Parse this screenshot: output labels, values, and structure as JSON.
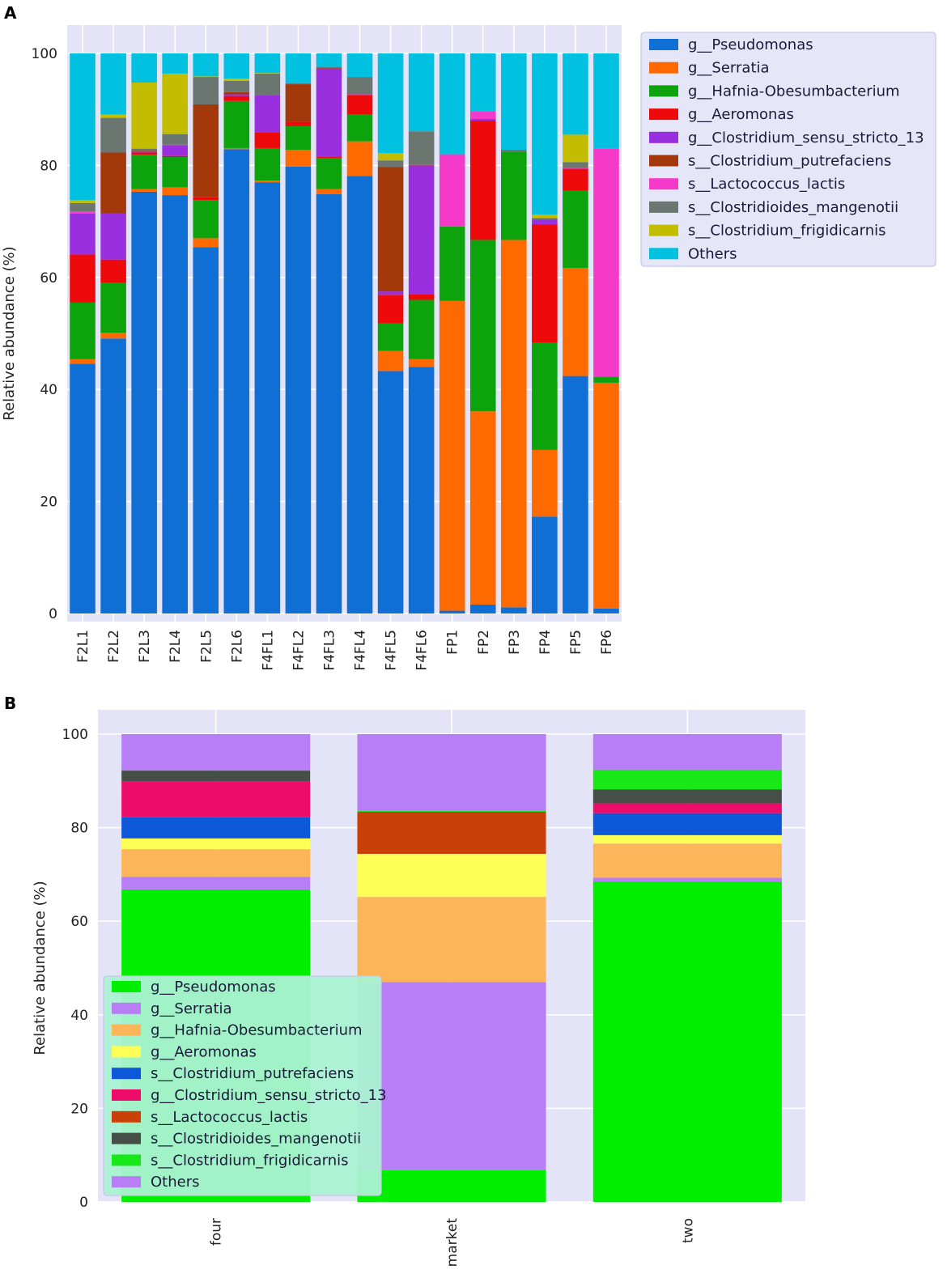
{
  "panels": {
    "a": "A",
    "b": "B"
  },
  "chart_data": [
    {
      "type": "bar",
      "stacked": true,
      "ylabel": "Relative abundance (%)",
      "ylim": [
        0,
        100
      ],
      "yticks": [
        0,
        20,
        40,
        60,
        80,
        100
      ],
      "grid": true,
      "legend_position": "right",
      "categories": [
        "F2L1",
        "F2L2",
        "F2L3",
        "F2L4",
        "F2L5",
        "F2L6",
        "F4FL1",
        "F4FL2",
        "F4FL3",
        "F4FL4",
        "F4FL5",
        "F4FL6",
        "FP1",
        "FP2",
        "FP3",
        "FP4",
        "FP5",
        "FP6"
      ],
      "series": [
        {
          "name": "g__Pseudomonas",
          "color": "#0f6fd5",
          "values": [
            44.6,
            49.1,
            75.3,
            74.7,
            65.4,
            82.9,
            77.0,
            79.8,
            74.9,
            78.1,
            43.3,
            44.0,
            0.5,
            1.6,
            1.1,
            17.3,
            42.4,
            0.9
          ]
        },
        {
          "name": "g__Serratia",
          "color": "#ff6a00",
          "values": [
            0.8,
            1.0,
            0.5,
            1.4,
            1.6,
            0.2,
            0.3,
            3.0,
            0.9,
            6.2,
            3.6,
            1.4,
            55.3,
            34.5,
            65.6,
            11.9,
            19.3,
            40.3
          ]
        },
        {
          "name": "g__Hafnia-Obesumbacterium",
          "color": "#0da30d",
          "values": [
            10.1,
            8.9,
            6.1,
            5.4,
            6.8,
            8.4,
            5.8,
            4.2,
            5.5,
            4.8,
            4.9,
            10.6,
            13.3,
            30.6,
            15.7,
            19.1,
            13.8,
            1.1
          ]
        },
        {
          "name": "g__Aeromonas",
          "color": "#ee0a0a",
          "values": [
            8.6,
            4.2,
            0.4,
            0.2,
            0.5,
            0.9,
            2.8,
            0.8,
            0.3,
            3.5,
            5.1,
            1.0,
            0.0,
            21.3,
            0.1,
            21.2,
            3.9,
            0.0
          ]
        },
        {
          "name": "g__Clostridium_sensu_stricto_13",
          "color": "#9a2fe0",
          "values": [
            7.3,
            8.2,
            0.2,
            1.9,
            0.0,
            0.3,
            6.7,
            0.0,
            15.7,
            0.0,
            0.6,
            23.0,
            0.0,
            0.3,
            0.0,
            0.8,
            0.0,
            0.0
          ]
        },
        {
          "name": "s__Clostridium_putrefaciens",
          "color": "#a3380a",
          "values": [
            0.0,
            10.9,
            0.1,
            0.0,
            16.6,
            0.4,
            0.0,
            6.7,
            0.1,
            0.0,
            22.2,
            0.1,
            0.0,
            0.0,
            0.0,
            0.0,
            0.0,
            0.0
          ]
        },
        {
          "name": "s__Lactococcus_lactis",
          "color": "#f539c9",
          "values": [
            0.4,
            0.0,
            0.0,
            0.1,
            0.0,
            0.0,
            0.0,
            0.0,
            0.0,
            0.1,
            0.0,
            0.0,
            12.9,
            1.3,
            0.0,
            0.0,
            0.1,
            40.7
          ]
        },
        {
          "name": "s__Clostridioides_mangenotii",
          "color": "#6b7670",
          "values": [
            1.5,
            6.2,
            0.4,
            1.9,
            4.9,
            2.0,
            3.8,
            0.2,
            0.2,
            3.1,
            1.2,
            6.0,
            0.0,
            0.0,
            0.3,
            0.3,
            1.1,
            0.0
          ]
        },
        {
          "name": "s__Clostridium_frigidicarnis",
          "color": "#c2bd00",
          "values": [
            0.5,
            0.6,
            11.8,
            10.8,
            0.1,
            0.4,
            0.1,
            0.0,
            0.0,
            0.0,
            1.3,
            0.0,
            0.0,
            0.0,
            0.0,
            0.6,
            4.9,
            0.0
          ]
        },
        {
          "name": "Others",
          "color": "#00c1e0",
          "values": [
            26.2,
            10.9,
            5.2,
            3.6,
            4.1,
            4.5,
            3.5,
            5.3,
            2.4,
            4.2,
            17.8,
            13.9,
            18.0,
            10.4,
            17.2,
            28.8,
            14.5,
            17.0
          ]
        }
      ]
    },
    {
      "type": "bar",
      "stacked": true,
      "ylabel": "Relative abundance (%)",
      "ylim": [
        0,
        100
      ],
      "yticks": [
        0,
        20,
        40,
        60,
        80,
        100
      ],
      "grid": true,
      "legend_position": "lower-left",
      "categories": [
        "four",
        "market",
        "two"
      ],
      "series": [
        {
          "name": "g__Pseudomonas",
          "color": "#00ef00",
          "values": [
            66.8,
            6.8,
            68.5
          ]
        },
        {
          "name": "g__Serratia",
          "color": "#b77ef5",
          "values": [
            2.7,
            40.2,
            0.8
          ]
        },
        {
          "name": "g__Hafnia-Obesumbacterium",
          "color": "#fdb55a",
          "values": [
            5.9,
            18.2,
            7.3
          ]
        },
        {
          "name": "g__Aeromonas",
          "color": "#fefe57",
          "values": [
            2.3,
            9.2,
            1.8
          ]
        },
        {
          "name": "s__Clostridium_putrefaciens",
          "color": "#0c58d8",
          "values": [
            4.6,
            0.0,
            4.7
          ]
        },
        {
          "name": "g__Clostridium_sensu_stricto_13",
          "color": "#ee0c6a",
          "values": [
            7.6,
            0.0,
            2.1
          ]
        },
        {
          "name": "s__Lactococcus_lactis",
          "color": "#c94008",
          "values": [
            0.0,
            9.0,
            0.0
          ]
        },
        {
          "name": "s__Clostridioides_mangenotii",
          "color": "#454e47",
          "values": [
            2.3,
            0.0,
            3.0
          ]
        },
        {
          "name": "s__Clostridium_frigidicarnis",
          "color": "#18e818",
          "values": [
            0.0,
            0.3,
            4.2
          ]
        },
        {
          "name": "Others",
          "color": "#b77ef5",
          "values": [
            7.8,
            16.3,
            7.6
          ]
        }
      ]
    }
  ]
}
